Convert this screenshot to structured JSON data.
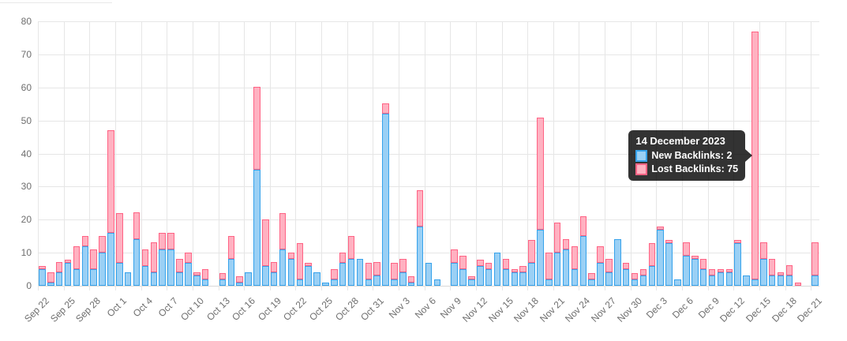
{
  "chart": {
    "colors": {
      "new_fill": "#9AD0F5",
      "new_border": "#36A2EB",
      "lost_fill": "#FFB1C1",
      "lost_border": "#FF6384",
      "gridline": "#E6E6E6",
      "axis_text": "#6E6E6E",
      "tooltip_bg": "rgba(0,0,0,0.8)"
    },
    "y_axis": {
      "min": 0,
      "max": 80,
      "step": 10,
      "ticks": [
        "0",
        "10",
        "20",
        "30",
        "40",
        "50",
        "60",
        "70",
        "80"
      ]
    },
    "x_axis": {
      "tick_every": 3,
      "tick_labels": [
        "Sep 22",
        "Sep 25",
        "Sep 28",
        "Oct 1",
        "Oct 4",
        "Oct 7",
        "Oct 10",
        "Oct 13",
        "Oct 16",
        "Oct 19",
        "Oct 22",
        "Oct 25",
        "Oct 28",
        "Oct 31",
        "Nov 3",
        "Nov 6",
        "Nov 9",
        "Nov 12",
        "Nov 15",
        "Nov 18",
        "Nov 21",
        "Nov 24",
        "Nov 27",
        "Nov 30",
        "Dec 3",
        "Dec 6",
        "Dec 9",
        "Dec 12",
        "Dec 15",
        "Dec 18",
        "Dec 21"
      ]
    },
    "tooltip": {
      "title": "14 December 2023",
      "anchor_index": 83,
      "rows": [
        {
          "text": "New Backlinks: 2",
          "fill": "#9AD0F5",
          "border": "#36A2EB"
        },
        {
          "text": "Lost Backlinks: 75",
          "fill": "#FFB1C1",
          "border": "#FF6384"
        }
      ]
    }
  },
  "chart_data": {
    "type": "bar",
    "stacked": true,
    "title": "",
    "xlabel": "",
    "ylabel": "",
    "ylim": [
      0,
      80
    ],
    "grid": true,
    "legend": "none",
    "categories": [
      "Sep 22",
      "Sep 23",
      "Sep 24",
      "Sep 25",
      "Sep 26",
      "Sep 27",
      "Sep 28",
      "Sep 29",
      "Sep 30",
      "Oct 1",
      "Oct 2",
      "Oct 3",
      "Oct 4",
      "Oct 5",
      "Oct 6",
      "Oct 7",
      "Oct 8",
      "Oct 9",
      "Oct 10",
      "Oct 11",
      "Oct 12",
      "Oct 13",
      "Oct 14",
      "Oct 15",
      "Oct 16",
      "Oct 17",
      "Oct 18",
      "Oct 19",
      "Oct 20",
      "Oct 21",
      "Oct 22",
      "Oct 23",
      "Oct 24",
      "Oct 25",
      "Oct 26",
      "Oct 27",
      "Oct 28",
      "Oct 29",
      "Oct 30",
      "Oct 31",
      "Nov 1",
      "Nov 2",
      "Nov 3",
      "Nov 4",
      "Nov 5",
      "Nov 6",
      "Nov 7",
      "Nov 8",
      "Nov 9",
      "Nov 10",
      "Nov 11",
      "Nov 12",
      "Nov 13",
      "Nov 14",
      "Nov 15",
      "Nov 16",
      "Nov 17",
      "Nov 18",
      "Nov 19",
      "Nov 20",
      "Nov 21",
      "Nov 22",
      "Nov 23",
      "Nov 24",
      "Nov 25",
      "Nov 26",
      "Nov 27",
      "Nov 28",
      "Nov 29",
      "Nov 30",
      "Dec 1",
      "Dec 2",
      "Dec 3",
      "Dec 4",
      "Dec 5",
      "Dec 6",
      "Dec 7",
      "Dec 8",
      "Dec 9",
      "Dec 10",
      "Dec 11",
      "Dec 12",
      "Dec 13",
      "Dec 14",
      "Dec 15",
      "Dec 16",
      "Dec 17",
      "Dec 18",
      "Dec 19",
      "Dec 20",
      "Dec 21"
    ],
    "series": [
      {
        "name": "New Backlinks",
        "color": "#9AD0F5",
        "border": "#36A2EB",
        "values": [
          5,
          1,
          4,
          7,
          5,
          12,
          5,
          10,
          16,
          7,
          4,
          14,
          6,
          4,
          11,
          11,
          4,
          7,
          3,
          2,
          0,
          2,
          8,
          1,
          4,
          35,
          6,
          4,
          11,
          8,
          2,
          6,
          4,
          1,
          2,
          7,
          8,
          8,
          2,
          3,
          52,
          2,
          4,
          1,
          18,
          7,
          2,
          0,
          7,
          5,
          2,
          6,
          5,
          10,
          5,
          4,
          4,
          7,
          17,
          2,
          10,
          11,
          5,
          15,
          2,
          7,
          4,
          14,
          5,
          2,
          3,
          6,
          17,
          13,
          2,
          9,
          8,
          5,
          3,
          4,
          4,
          13,
          3,
          2,
          8,
          3,
          3,
          3,
          0,
          0,
          3
        ]
      },
      {
        "name": "Lost Backlinks",
        "color": "#FFB1C1",
        "border": "#FF6384",
        "values": [
          1,
          3,
          3,
          1,
          7,
          3,
          6,
          5,
          31,
          15,
          0,
          8,
          5,
          9,
          5,
          5,
          4,
          3,
          1,
          3,
          0,
          2,
          7,
          2,
          0,
          25,
          14,
          3,
          11,
          2,
          11,
          1,
          0,
          0,
          3,
          3,
          7,
          0,
          5,
          4,
          3,
          5,
          4,
          2,
          11,
          0,
          0,
          0,
          4,
          4,
          1,
          2,
          2,
          0,
          3,
          1,
          2,
          7,
          34,
          8,
          9,
          3,
          7,
          6,
          2,
          5,
          4,
          0,
          2,
          2,
          2,
          7,
          1,
          1,
          0,
          4,
          1,
          3,
          2,
          1,
          1,
          1,
          0,
          75,
          5,
          5,
          1,
          3,
          1,
          0,
          10
        ]
      }
    ]
  }
}
